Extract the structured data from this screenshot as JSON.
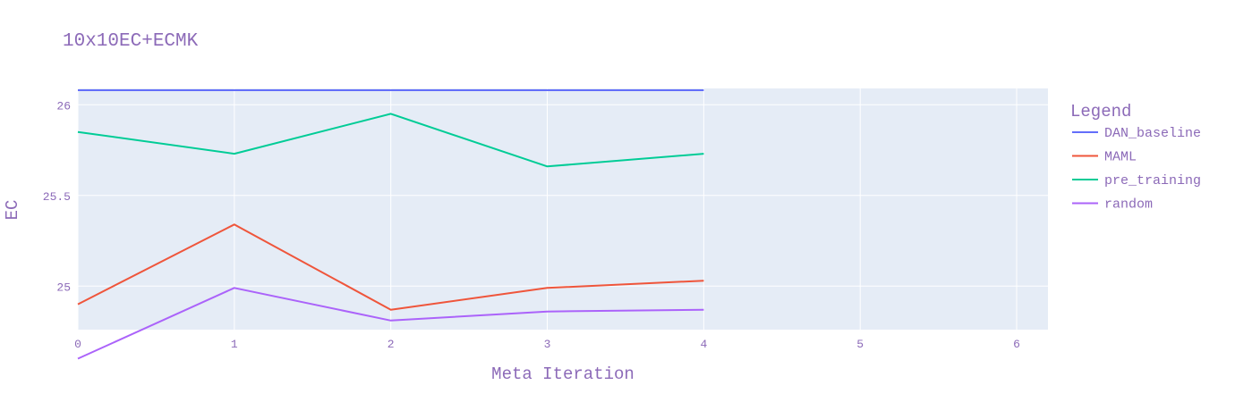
{
  "chart_data": {
    "type": "line",
    "title": "10x10EC+ECMK",
    "xlabel": "Meta Iteration",
    "ylabel": "EC",
    "xlim": [
      0,
      6.2
    ],
    "ylim": [
      24.76,
      26.09
    ],
    "x_ticks": [
      0,
      1,
      2,
      3,
      4,
      5,
      6
    ],
    "y_ticks": [
      25,
      25.5,
      26
    ],
    "grid": true,
    "legend": {
      "title": "Legend",
      "position": "right"
    },
    "series": [
      {
        "name": "DAN_baseline",
        "color": "#636efa",
        "x": [
          0,
          1,
          2,
          3,
          4
        ],
        "y": [
          26.08,
          26.08,
          26.08,
          26.08,
          26.08
        ]
      },
      {
        "name": "MAML",
        "color": "#ef553b",
        "x": [
          0,
          1,
          2,
          3,
          4
        ],
        "y": [
          24.9,
          25.34,
          24.87,
          24.99,
          25.03
        ]
      },
      {
        "name": "pre_training",
        "color": "#00cc96",
        "x": [
          0,
          1,
          2,
          3,
          4
        ],
        "y": [
          25.85,
          25.73,
          25.95,
          25.66,
          25.73
        ]
      },
      {
        "name": "random",
        "color": "#ab63fa",
        "x": [
          0,
          1,
          2,
          3,
          4
        ],
        "y": [
          24.6,
          24.99,
          24.81,
          24.86,
          24.87
        ]
      }
    ],
    "colors": {
      "text": "#8c6ab8",
      "plot_background": "#e5ecf6",
      "grid": "#ffffff"
    }
  }
}
